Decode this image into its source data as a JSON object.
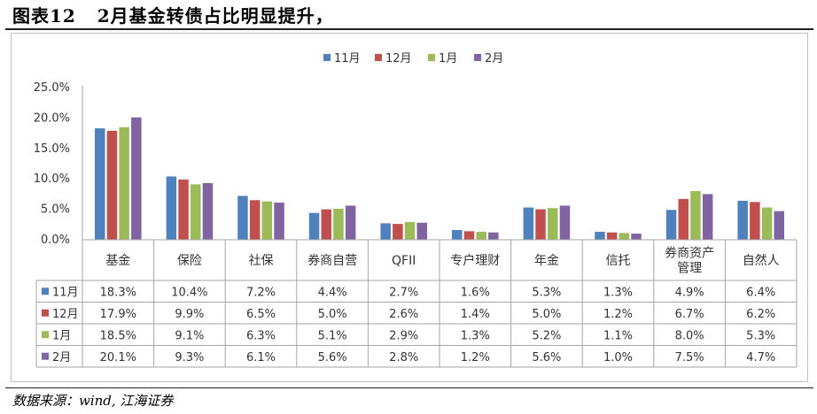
{
  "figure": {
    "label": "图表12",
    "title": "2月基金转债占比明显提升，",
    "source": "数据来源：wind, 江海证券"
  },
  "chart_data": {
    "type": "bar",
    "categories": [
      "基金",
      "保险",
      "社保",
      "券商自营",
      "QFII",
      "专户理财",
      "年金",
      "信托",
      "券商资产管理",
      "自然人"
    ],
    "category_lines": [
      [
        "基金"
      ],
      [
        "保险"
      ],
      [
        "社保"
      ],
      [
        "券商自营"
      ],
      [
        "QFII"
      ],
      [
        "专户理财"
      ],
      [
        "年金"
      ],
      [
        "信托"
      ],
      [
        "券商资产",
        "管理"
      ],
      [
        "自然人"
      ]
    ],
    "series": [
      {
        "name": "11月",
        "color": "#4f81bd",
        "values": [
          18.3,
          10.4,
          7.2,
          4.4,
          2.7,
          1.6,
          5.3,
          1.3,
          4.9,
          6.4
        ],
        "labels": [
          "18.3%",
          "10.4%",
          "7.2%",
          "4.4%",
          "2.7%",
          "1.6%",
          "5.3%",
          "1.3%",
          "4.9%",
          "6.4%"
        ]
      },
      {
        "name": "12月",
        "color": "#c0504d",
        "values": [
          17.9,
          9.9,
          6.5,
          5.0,
          2.6,
          1.4,
          5.0,
          1.2,
          6.7,
          6.2
        ],
        "labels": [
          "17.9%",
          "9.9%",
          "6.5%",
          "5.0%",
          "2.6%",
          "1.4%",
          "5.0%",
          "1.2%",
          "6.7%",
          "6.2%"
        ]
      },
      {
        "name": "1月",
        "color": "#9bbb59",
        "values": [
          18.5,
          9.1,
          6.3,
          5.1,
          2.9,
          1.3,
          5.2,
          1.1,
          8.0,
          5.3
        ],
        "labels": [
          "18.5%",
          "9.1%",
          "6.3%",
          "5.1%",
          "2.9%",
          "1.3%",
          "5.2%",
          "1.1%",
          "8.0%",
          "5.3%"
        ]
      },
      {
        "name": "2月",
        "color": "#8064a2",
        "values": [
          20.1,
          9.3,
          6.1,
          5.6,
          2.8,
          1.2,
          5.6,
          1.0,
          7.5,
          4.7
        ],
        "labels": [
          "20.1%",
          "9.3%",
          "6.1%",
          "5.6%",
          "2.8%",
          "1.2%",
          "5.6%",
          "1.0%",
          "7.5%",
          "4.7%"
        ]
      }
    ],
    "yticks": [
      "0.0%",
      "5.0%",
      "10.0%",
      "15.0%",
      "20.0%",
      "25.0%"
    ],
    "ylim": [
      0,
      25
    ],
    "ystep": 5,
    "legend_position": "top-center",
    "grid": false,
    "data_table": true
  }
}
